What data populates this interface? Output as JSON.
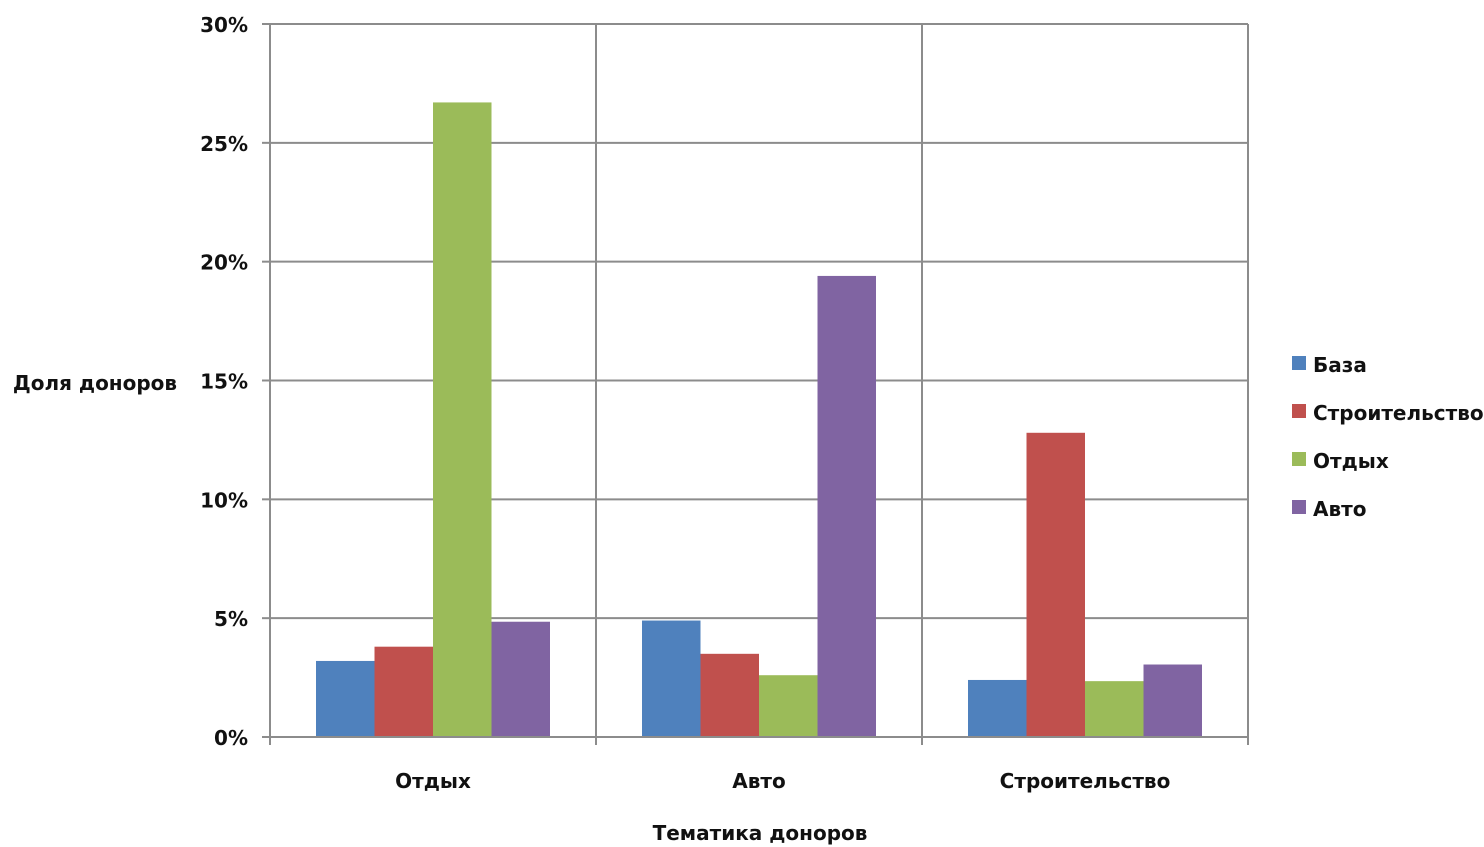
{
  "chart_data": {
    "type": "bar",
    "categories": [
      "Отдых",
      "Авто",
      "Строительство"
    ],
    "series": [
      {
        "name": "База",
        "values": [
          3.2,
          4.9,
          2.4
        ],
        "color": "#4f81bd"
      },
      {
        "name": "Строительство",
        "values": [
          3.8,
          3.5,
          12.8
        ],
        "color": "#c0504d"
      },
      {
        "name": "Отдых",
        "values": [
          26.7,
          2.6,
          2.35
        ],
        "color": "#9bbb59"
      },
      {
        "name": "Авто",
        "values": [
          4.85,
          19.4,
          3.05
        ],
        "color": "#8064a2"
      }
    ],
    "yticks": [
      "0%",
      "5%",
      "10%",
      "15%",
      "20%",
      "25%",
      "30%"
    ],
    "ylim": [
      0,
      30
    ],
    "xlabel": "Тематика доноров",
    "ylabel": "Доля доноров",
    "grid": true,
    "legend_position": "right"
  }
}
